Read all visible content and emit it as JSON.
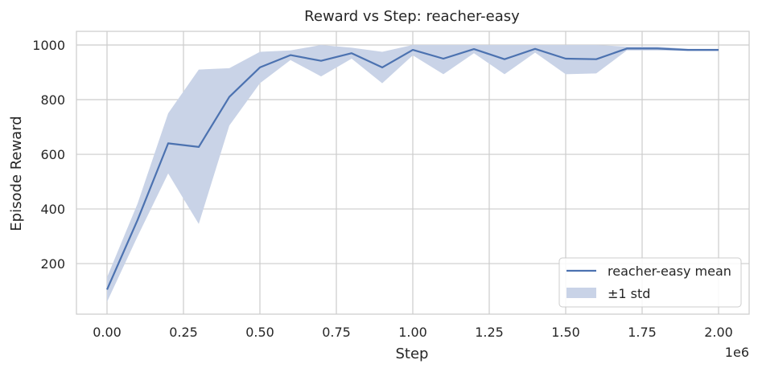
{
  "chart_data": {
    "type": "line",
    "title": "Reward vs Step: reacher-easy",
    "xlabel": "Step",
    "ylabel": "Episode Reward",
    "x_offset_label": "1e6",
    "x_scale": 1000000,
    "xlim": [
      -100000,
      2100000
    ],
    "ylim": [
      15,
      1050
    ],
    "x_ticks": [
      0,
      250000,
      500000,
      750000,
      1000000,
      1250000,
      1500000,
      1750000,
      2000000
    ],
    "x_tick_labels": [
      "0.00",
      "0.25",
      "0.50",
      "0.75",
      "1.00",
      "1.25",
      "1.50",
      "1.75",
      "2.00"
    ],
    "y_ticks": [
      200,
      400,
      600,
      800,
      1000
    ],
    "y_tick_labels": [
      "200",
      "400",
      "600",
      "800",
      "1000"
    ],
    "grid": true,
    "legend_position": "lower-right",
    "x": [
      0,
      100000,
      200000,
      300000,
      400000,
      500000,
      600000,
      700000,
      800000,
      900000,
      1000000,
      1100000,
      1200000,
      1300000,
      1400000,
      1500000,
      1600000,
      1700000,
      1800000,
      1900000,
      2000000
    ],
    "series": [
      {
        "name": "reacher-easy mean",
        "color": "#4c72b0",
        "values": [
          105,
          360,
          640,
          627,
          810,
          918,
          963,
          942,
          970,
          918,
          982,
          950,
          985,
          948,
          986,
          950,
          948,
          987,
          987,
          982,
          982
        ],
        "std_lower": [
          60,
          300,
          530,
          345,
          705,
          860,
          945,
          885,
          950,
          860,
          962,
          893,
          970,
          893,
          972,
          893,
          896,
          980,
          980,
          978,
          978
        ],
        "std_upper": [
          150,
          420,
          750,
          910,
          915,
          975,
          980,
          1000,
          990,
          975,
          1000,
          1000,
          1000,
          1000,
          1000,
          1000,
          1000,
          994,
          994,
          986,
          986
        ]
      }
    ],
    "legend": [
      {
        "label": "reacher-easy mean",
        "kind": "line"
      },
      {
        "label": "±1 std",
        "kind": "band"
      }
    ],
    "band_color": "#c9d3e7"
  }
}
